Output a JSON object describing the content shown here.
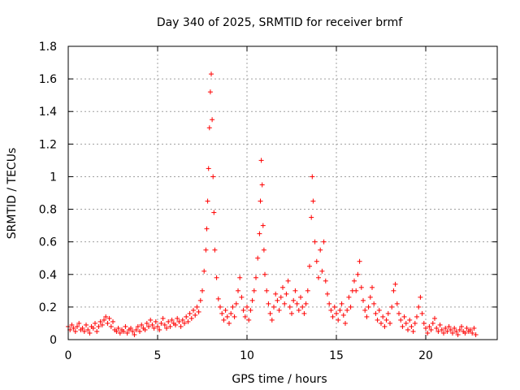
{
  "chart_data": {
    "type": "scatter",
    "title": "Day 340 of 2025, SRMTID for receiver brmf",
    "xlabel": "GPS time / hours",
    "ylabel": "SRMTID / TECUs",
    "xlim": [
      0,
      24
    ],
    "ylim": [
      0,
      1.8
    ],
    "xticks": [
      0,
      5,
      10,
      15,
      20
    ],
    "xtick_labels": [
      "0",
      "5",
      "10",
      "15",
      "20"
    ],
    "yticks": [
      0,
      0.2,
      0.4,
      0.6,
      0.8,
      1.0,
      1.2,
      1.4,
      1.6,
      1.8
    ],
    "ytick_labels": [
      "0",
      "0.2",
      "0.4",
      "0.6",
      "0.8",
      "1",
      "1.2",
      "1.4",
      "1.6",
      "1.8"
    ],
    "grid": true,
    "marker": "+",
    "color": "#ff0000",
    "series": [
      {
        "name": "SRMTID",
        "points": [
          [
            0.0,
            0.08
          ],
          [
            0.1,
            0.06
          ],
          [
            0.2,
            0.09
          ],
          [
            0.3,
            0.07
          ],
          [
            0.4,
            0.05
          ],
          [
            0.5,
            0.08
          ],
          [
            0.6,
            0.1
          ],
          [
            0.7,
            0.06
          ],
          [
            0.8,
            0.07
          ],
          [
            0.9,
            0.05
          ],
          [
            1.0,
            0.09
          ],
          [
            1.1,
            0.06
          ],
          [
            1.2,
            0.04
          ],
          [
            1.3,
            0.08
          ],
          [
            1.4,
            0.07
          ],
          [
            1.5,
            0.1
          ],
          [
            1.6,
            0.05
          ],
          [
            1.7,
            0.08
          ],
          [
            1.8,
            0.11
          ],
          [
            1.9,
            0.09
          ],
          [
            2.0,
            0.12
          ],
          [
            2.1,
            0.14
          ],
          [
            2.2,
            0.1
          ],
          [
            2.3,
            0.13
          ],
          [
            2.4,
            0.08
          ],
          [
            2.5,
            0.11
          ],
          [
            2.6,
            0.06
          ],
          [
            2.7,
            0.05
          ],
          [
            2.8,
            0.07
          ],
          [
            2.9,
            0.04
          ],
          [
            3.0,
            0.06
          ],
          [
            3.1,
            0.05
          ],
          [
            3.2,
            0.08
          ],
          [
            3.3,
            0.04
          ],
          [
            3.4,
            0.06
          ],
          [
            3.5,
            0.07
          ],
          [
            3.6,
            0.05
          ],
          [
            3.7,
            0.03
          ],
          [
            3.8,
            0.06
          ],
          [
            3.9,
            0.08
          ],
          [
            4.0,
            0.05
          ],
          [
            4.1,
            0.09
          ],
          [
            4.2,
            0.07
          ],
          [
            4.3,
            0.06
          ],
          [
            4.4,
            0.1
          ],
          [
            4.5,
            0.08
          ],
          [
            4.6,
            0.12
          ],
          [
            4.7,
            0.09
          ],
          [
            4.8,
            0.07
          ],
          [
            4.9,
            0.11
          ],
          [
            5.0,
            0.08
          ],
          [
            5.1,
            0.06
          ],
          [
            5.2,
            0.1
          ],
          [
            5.3,
            0.13
          ],
          [
            5.4,
            0.09
          ],
          [
            5.5,
            0.07
          ],
          [
            5.6,
            0.11
          ],
          [
            5.7,
            0.08
          ],
          [
            5.8,
            0.12
          ],
          [
            5.9,
            0.1
          ],
          [
            6.0,
            0.09
          ],
          [
            6.1,
            0.13
          ],
          [
            6.2,
            0.11
          ],
          [
            6.3,
            0.08
          ],
          [
            6.4,
            0.12
          ],
          [
            6.5,
            0.1
          ],
          [
            6.6,
            0.14
          ],
          [
            6.7,
            0.11
          ],
          [
            6.8,
            0.16
          ],
          [
            6.9,
            0.13
          ],
          [
            7.0,
            0.18
          ],
          [
            7.1,
            0.15
          ],
          [
            7.2,
            0.2
          ],
          [
            7.3,
            0.17
          ],
          [
            7.4,
            0.24
          ],
          [
            7.5,
            0.3
          ],
          [
            7.6,
            0.42
          ],
          [
            7.7,
            0.55
          ],
          [
            7.75,
            0.68
          ],
          [
            7.8,
            0.85
          ],
          [
            7.85,
            1.05
          ],
          [
            7.9,
            1.3
          ],
          [
            7.95,
            1.52
          ],
          [
            8.0,
            1.63
          ],
          [
            8.05,
            1.35
          ],
          [
            8.1,
            1.0
          ],
          [
            8.15,
            0.78
          ],
          [
            8.2,
            0.55
          ],
          [
            8.3,
            0.38
          ],
          [
            8.4,
            0.25
          ],
          [
            8.5,
            0.2
          ],
          [
            8.6,
            0.16
          ],
          [
            8.7,
            0.12
          ],
          [
            8.8,
            0.18
          ],
          [
            8.9,
            0.14
          ],
          [
            9.0,
            0.1
          ],
          [
            9.1,
            0.16
          ],
          [
            9.2,
            0.2
          ],
          [
            9.3,
            0.14
          ],
          [
            9.4,
            0.22
          ],
          [
            9.5,
            0.3
          ],
          [
            9.6,
            0.38
          ],
          [
            9.7,
            0.26
          ],
          [
            9.8,
            0.18
          ],
          [
            9.9,
            0.14
          ],
          [
            10.0,
            0.2
          ],
          [
            10.1,
            0.12
          ],
          [
            10.2,
            0.18
          ],
          [
            10.3,
            0.24
          ],
          [
            10.4,
            0.3
          ],
          [
            10.5,
            0.38
          ],
          [
            10.6,
            0.5
          ],
          [
            10.7,
            0.65
          ],
          [
            10.75,
            0.85
          ],
          [
            10.8,
            1.1
          ],
          [
            10.85,
            0.95
          ],
          [
            10.9,
            0.7
          ],
          [
            10.95,
            0.55
          ],
          [
            11.0,
            0.4
          ],
          [
            11.1,
            0.3
          ],
          [
            11.2,
            0.22
          ],
          [
            11.3,
            0.16
          ],
          [
            11.4,
            0.12
          ],
          [
            11.5,
            0.2
          ],
          [
            11.6,
            0.28
          ],
          [
            11.7,
            0.24
          ],
          [
            11.8,
            0.18
          ],
          [
            11.9,
            0.26
          ],
          [
            12.0,
            0.32
          ],
          [
            12.1,
            0.22
          ],
          [
            12.2,
            0.28
          ],
          [
            12.3,
            0.36
          ],
          [
            12.4,
            0.2
          ],
          [
            12.5,
            0.16
          ],
          [
            12.6,
            0.24
          ],
          [
            12.7,
            0.3
          ],
          [
            12.8,
            0.22
          ],
          [
            12.9,
            0.18
          ],
          [
            13.0,
            0.26
          ],
          [
            13.1,
            0.2
          ],
          [
            13.2,
            0.16
          ],
          [
            13.3,
            0.22
          ],
          [
            13.4,
            0.3
          ],
          [
            13.5,
            0.45
          ],
          [
            13.6,
            0.75
          ],
          [
            13.65,
            1.0
          ],
          [
            13.7,
            0.85
          ],
          [
            13.8,
            0.6
          ],
          [
            13.9,
            0.48
          ],
          [
            14.0,
            0.38
          ],
          [
            14.1,
            0.55
          ],
          [
            14.2,
            0.42
          ],
          [
            14.3,
            0.6
          ],
          [
            14.4,
            0.36
          ],
          [
            14.5,
            0.28
          ],
          [
            14.6,
            0.22
          ],
          [
            14.7,
            0.18
          ],
          [
            14.8,
            0.14
          ],
          [
            14.9,
            0.2
          ],
          [
            15.0,
            0.16
          ],
          [
            15.1,
            0.12
          ],
          [
            15.2,
            0.18
          ],
          [
            15.3,
            0.22
          ],
          [
            15.4,
            0.15
          ],
          [
            15.5,
            0.1
          ],
          [
            15.6,
            0.18
          ],
          [
            15.7,
            0.26
          ],
          [
            15.8,
            0.2
          ],
          [
            15.9,
            0.3
          ],
          [
            16.0,
            0.36
          ],
          [
            16.1,
            0.3
          ],
          [
            16.2,
            0.4
          ],
          [
            16.3,
            0.48
          ],
          [
            16.4,
            0.32
          ],
          [
            16.5,
            0.24
          ],
          [
            16.6,
            0.18
          ],
          [
            16.7,
            0.14
          ],
          [
            16.8,
            0.2
          ],
          [
            16.9,
            0.26
          ],
          [
            17.0,
            0.32
          ],
          [
            17.1,
            0.22
          ],
          [
            17.2,
            0.16
          ],
          [
            17.3,
            0.12
          ],
          [
            17.4,
            0.18
          ],
          [
            17.5,
            0.1
          ],
          [
            17.6,
            0.14
          ],
          [
            17.7,
            0.08
          ],
          [
            17.8,
            0.12
          ],
          [
            17.9,
            0.16
          ],
          [
            18.0,
            0.1
          ],
          [
            18.1,
            0.2
          ],
          [
            18.2,
            0.3
          ],
          [
            18.3,
            0.34
          ],
          [
            18.4,
            0.22
          ],
          [
            18.5,
            0.16
          ],
          [
            18.6,
            0.12
          ],
          [
            18.7,
            0.08
          ],
          [
            18.8,
            0.14
          ],
          [
            18.9,
            0.1
          ],
          [
            19.0,
            0.06
          ],
          [
            19.1,
            0.12
          ],
          [
            19.2,
            0.08
          ],
          [
            19.3,
            0.05
          ],
          [
            19.4,
            0.1
          ],
          [
            19.5,
            0.14
          ],
          [
            19.6,
            0.2
          ],
          [
            19.7,
            0.26
          ],
          [
            19.8,
            0.16
          ],
          [
            19.9,
            0.1
          ],
          [
            20.0,
            0.07
          ],
          [
            20.1,
            0.04
          ],
          [
            20.2,
            0.08
          ],
          [
            20.3,
            0.06
          ],
          [
            20.4,
            0.1
          ],
          [
            20.5,
            0.13
          ],
          [
            20.6,
            0.07
          ],
          [
            20.7,
            0.05
          ],
          [
            20.8,
            0.09
          ],
          [
            20.9,
            0.06
          ],
          [
            21.0,
            0.04
          ],
          [
            21.1,
            0.07
          ],
          [
            21.2,
            0.05
          ],
          [
            21.3,
            0.08
          ],
          [
            21.4,
            0.06
          ],
          [
            21.5,
            0.04
          ],
          [
            21.6,
            0.07
          ],
          [
            21.7,
            0.05
          ],
          [
            21.8,
            0.03
          ],
          [
            21.9,
            0.06
          ],
          [
            22.0,
            0.08
          ],
          [
            22.1,
            0.05
          ],
          [
            22.2,
            0.04
          ],
          [
            22.3,
            0.07
          ],
          [
            22.4,
            0.05
          ],
          [
            22.5,
            0.06
          ],
          [
            22.6,
            0.04
          ],
          [
            22.7,
            0.07
          ],
          [
            22.8,
            0.03
          ]
        ]
      }
    ]
  }
}
